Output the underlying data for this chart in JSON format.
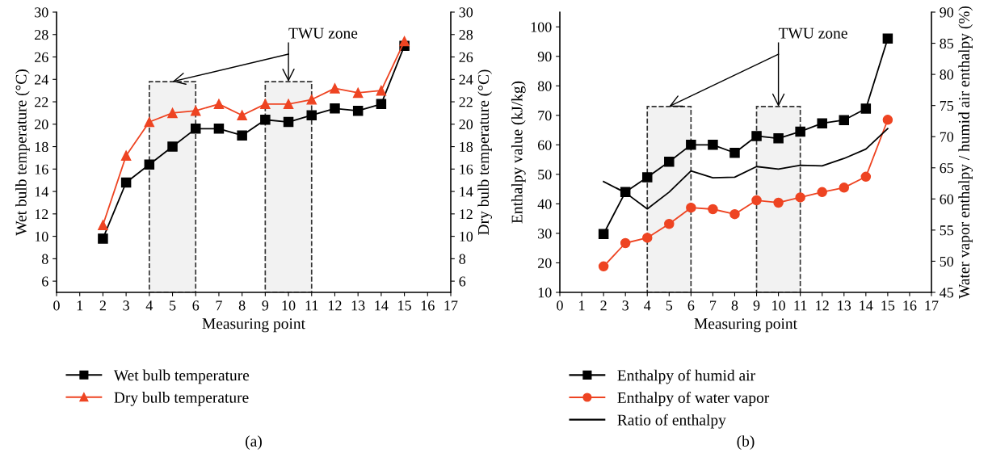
{
  "chart_data": [
    {
      "type": "line",
      "title": "(a)",
      "xlabel": "Measuring point",
      "ylabel": "Wet bulb temperature (°C)",
      "y2label": "Dry bulb temperature (°C)",
      "x": [
        2,
        3,
        4,
        5,
        6,
        7,
        8,
        9,
        10,
        11,
        12,
        13,
        14,
        15
      ],
      "series": [
        {
          "name": "Wet bulb temperature",
          "color": "#000000",
          "marker": "square",
          "values": [
            9.8,
            14.8,
            16.4,
            18,
            19.6,
            19.6,
            19,
            20.4,
            20.2,
            20.8,
            21.4,
            21.2,
            21.8,
            27
          ]
        },
        {
          "name": "Dry bulb temperature",
          "color": "#ee4422",
          "marker": "triangle",
          "axis": "y2",
          "values": [
            11,
            17.2,
            20.2,
            21,
            21.2,
            21.8,
            20.8,
            21.8,
            21.8,
            22.2,
            23.2,
            22.8,
            23,
            27.4
          ]
        }
      ],
      "xlim": [
        0,
        17
      ],
      "xticks": [
        0,
        1,
        2,
        3,
        4,
        5,
        6,
        7,
        8,
        9,
        10,
        11,
        12,
        13,
        14,
        15,
        16,
        17
      ],
      "ylim": [
        5,
        30
      ],
      "yticks": [
        6,
        8,
        10,
        12,
        14,
        16,
        18,
        20,
        22,
        24,
        26,
        28,
        30
      ],
      "y2lim": [
        5,
        30
      ],
      "y2ticks": [
        6,
        8,
        10,
        12,
        14,
        16,
        18,
        20,
        22,
        24,
        26,
        28,
        30
      ],
      "bands": [
        {
          "axis": "x",
          "from": 4,
          "to": 6,
          "color": "#f2f2f2"
        },
        {
          "axis": "x",
          "from": 9,
          "to": 11,
          "color": "#f2f2f2"
        }
      ],
      "annotations": [
        {
          "text": "TWU zone",
          "x": 10,
          "y": 23.8
        }
      ],
      "legend": "bottom",
      "grid": false,
      "line_style": "solid"
    },
    {
      "type": "line",
      "title": "(b)",
      "xlabel": "Measuring point",
      "ylabel": "Enthalpy value (kJ/kg)",
      "y2label": "Water vapor enthalpy / humid air enthalpy (%)",
      "x": [
        2,
        3,
        4,
        5,
        6,
        7,
        8,
        9,
        10,
        11,
        12,
        13,
        14,
        15
      ],
      "series": [
        {
          "name": "Enthalpy of humid air",
          "color": "#000000",
          "marker": "square",
          "values": [
            29.8,
            44,
            49,
            54.3,
            60,
            60,
            57.3,
            63,
            62.2,
            64.5,
            67.3,
            68.4,
            72.3,
            96
          ]
        },
        {
          "name": "Enthalpy of water vapor",
          "color": "#ee4422",
          "marker": "circle",
          "values": [
            18.8,
            26.7,
            28.5,
            33.2,
            38.7,
            38.2,
            36.5,
            41.2,
            40.4,
            42.2,
            44,
            45.5,
            49.2,
            68.5
          ]
        },
        {
          "name": "Ratio of enthalpy",
          "color": "#000000",
          "marker": "none",
          "axis": "y2",
          "values": [
            62.8,
            61,
            58.4,
            61.1,
            64.5,
            63.4,
            63.5,
            65.2,
            64.8,
            65.4,
            65.3,
            66.5,
            68,
            71.3
          ]
        }
      ],
      "xlim": [
        0,
        17
      ],
      "xticks": [
        0,
        1,
        2,
        3,
        4,
        5,
        6,
        7,
        8,
        9,
        10,
        11,
        12,
        13,
        14,
        15,
        16,
        17
      ],
      "ylim": [
        10,
        105
      ],
      "yticks": [
        10,
        20,
        30,
        40,
        50,
        60,
        70,
        80,
        90,
        100
      ],
      "y2lim": [
        45,
        90
      ],
      "y2ticks": [
        45,
        50,
        55,
        60,
        65,
        70,
        75,
        80,
        85,
        90
      ],
      "bands": [
        {
          "axis": "x",
          "from": 4,
          "to": 6,
          "color": "#f2f2f2"
        },
        {
          "axis": "x",
          "from": 9,
          "to": 11,
          "color": "#f2f2f2"
        }
      ],
      "annotations": [
        {
          "text": "TWU zone",
          "x": 10,
          "y": 73
        }
      ],
      "legend": "bottom",
      "grid": false,
      "line_style": "solid"
    }
  ]
}
